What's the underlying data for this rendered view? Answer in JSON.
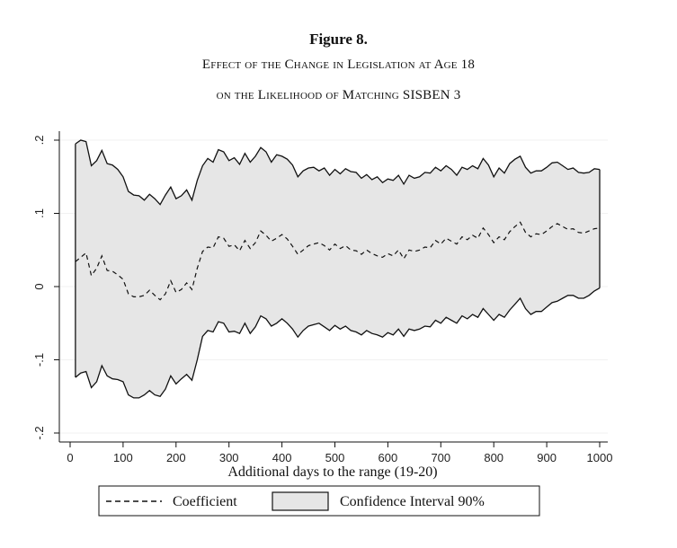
{
  "figure": {
    "number": "Figure 8.",
    "subtitle_line1": "Effect of the Change in Legislation at Age 18",
    "subtitle_line2": "on the Likelihood of Matching SISBEN 3"
  },
  "colors": {
    "band_fill": "#e6e6e6",
    "line": "#111111",
    "grid": "#f1f1f1"
  },
  "chart_data": {
    "type": "area",
    "title": "Effect of the Change in Legislation at Age 18 on the Likelihood of Matching SISBEN 3",
    "xlabel": "Additional days to the range (19-20)",
    "ylabel": "",
    "xlim": [
      0,
      1000
    ],
    "ylim": [
      -0.2,
      0.2
    ],
    "xticks": [
      0,
      100,
      200,
      300,
      400,
      500,
      600,
      700,
      800,
      900,
      1000
    ],
    "yticks": [
      -0.2,
      -0.1,
      0,
      0.1,
      0.2
    ],
    "ytick_labels": [
      "-.2",
      "-.1",
      "0",
      ".1",
      ".2"
    ],
    "grid": true,
    "legend": {
      "position": "bottom",
      "entries": [
        "Coefficient",
        "Confidence Interval 90%"
      ]
    },
    "x": [
      10,
      20,
      30,
      40,
      50,
      60,
      70,
      80,
      90,
      100,
      110,
      120,
      130,
      140,
      150,
      160,
      170,
      180,
      190,
      200,
      210,
      220,
      230,
      240,
      250,
      260,
      270,
      280,
      290,
      300,
      310,
      320,
      330,
      340,
      350,
      360,
      370,
      380,
      390,
      400,
      410,
      420,
      430,
      440,
      450,
      460,
      470,
      480,
      490,
      500,
      510,
      520,
      530,
      540,
      550,
      560,
      570,
      580,
      590,
      600,
      610,
      620,
      630,
      640,
      650,
      660,
      670,
      680,
      690,
      700,
      710,
      720,
      730,
      740,
      750,
      760,
      770,
      780,
      790,
      800,
      810,
      820,
      830,
      840,
      850,
      860,
      870,
      880,
      890,
      900,
      910,
      920,
      930,
      940,
      950,
      960,
      970,
      980,
      990,
      1000
    ],
    "series": [
      {
        "name": "Upper bound (90% CI)",
        "values": [
          0.195,
          0.2,
          0.198,
          0.165,
          0.172,
          0.186,
          0.168,
          0.166,
          0.16,
          0.15,
          0.13,
          0.125,
          0.124,
          0.118,
          0.126,
          0.12,
          0.112,
          0.125,
          0.136,
          0.12,
          0.124,
          0.132,
          0.118,
          0.145,
          0.165,
          0.175,
          0.17,
          0.187,
          0.184,
          0.172,
          0.176,
          0.167,
          0.182,
          0.17,
          0.178,
          0.19,
          0.184,
          0.17,
          0.18,
          0.178,
          0.174,
          0.166,
          0.15,
          0.158,
          0.162,
          0.163,
          0.158,
          0.162,
          0.152,
          0.16,
          0.154,
          0.161,
          0.157,
          0.156,
          0.148,
          0.153,
          0.146,
          0.15,
          0.142,
          0.147,
          0.145,
          0.152,
          0.14,
          0.152,
          0.148,
          0.15,
          0.156,
          0.155,
          0.163,
          0.158,
          0.165,
          0.16,
          0.152,
          0.163,
          0.16,
          0.165,
          0.161,
          0.175,
          0.166,
          0.15,
          0.162,
          0.155,
          0.168,
          0.174,
          0.178,
          0.163,
          0.155,
          0.158,
          0.158,
          0.163,
          0.169,
          0.17,
          0.165,
          0.16,
          0.162,
          0.156,
          0.155,
          0.156,
          0.161,
          0.16
        ]
      },
      {
        "name": "Coefficient",
        "values": [
          0.034,
          0.04,
          0.046,
          0.015,
          0.025,
          0.042,
          0.022,
          0.021,
          0.016,
          0.01,
          -0.01,
          -0.014,
          -0.014,
          -0.012,
          -0.005,
          -0.012,
          -0.018,
          -0.01,
          0.008,
          -0.008,
          -0.004,
          0.005,
          -0.004,
          0.025,
          0.048,
          0.054,
          0.053,
          0.068,
          0.066,
          0.055,
          0.057,
          0.049,
          0.063,
          0.052,
          0.06,
          0.076,
          0.07,
          0.062,
          0.066,
          0.071,
          0.065,
          0.055,
          0.044,
          0.05,
          0.056,
          0.058,
          0.06,
          0.056,
          0.05,
          0.058,
          0.052,
          0.056,
          0.05,
          0.049,
          0.044,
          0.05,
          0.045,
          0.042,
          0.04,
          0.045,
          0.042,
          0.05,
          0.038,
          0.05,
          0.048,
          0.05,
          0.054,
          0.053,
          0.063,
          0.058,
          0.066,
          0.062,
          0.058,
          0.068,
          0.064,
          0.07,
          0.066,
          0.08,
          0.071,
          0.06,
          0.068,
          0.064,
          0.075,
          0.082,
          0.088,
          0.074,
          0.068,
          0.072,
          0.071,
          0.076,
          0.082,
          0.086,
          0.082,
          0.078,
          0.079,
          0.074,
          0.073,
          0.076,
          0.079,
          0.08
        ]
      },
      {
        "name": "Lower bound (90% CI)",
        "values": [
          -0.124,
          -0.118,
          -0.116,
          -0.138,
          -0.13,
          -0.108,
          -0.122,
          -0.126,
          -0.127,
          -0.13,
          -0.148,
          -0.152,
          -0.152,
          -0.148,
          -0.142,
          -0.148,
          -0.15,
          -0.14,
          -0.122,
          -0.133,
          -0.126,
          -0.12,
          -0.128,
          -0.1,
          -0.068,
          -0.06,
          -0.062,
          -0.048,
          -0.05,
          -0.062,
          -0.061,
          -0.064,
          -0.05,
          -0.064,
          -0.055,
          -0.04,
          -0.044,
          -0.054,
          -0.05,
          -0.044,
          -0.05,
          -0.058,
          -0.069,
          -0.06,
          -0.054,
          -0.052,
          -0.05,
          -0.055,
          -0.06,
          -0.053,
          -0.058,
          -0.054,
          -0.06,
          -0.062,
          -0.066,
          -0.06,
          -0.064,
          -0.066,
          -0.069,
          -0.063,
          -0.066,
          -0.058,
          -0.068,
          -0.058,
          -0.06,
          -0.058,
          -0.054,
          -0.055,
          -0.046,
          -0.05,
          -0.042,
          -0.046,
          -0.05,
          -0.04,
          -0.044,
          -0.038,
          -0.042,
          -0.03,
          -0.038,
          -0.046,
          -0.038,
          -0.042,
          -0.032,
          -0.024,
          -0.016,
          -0.03,
          -0.038,
          -0.034,
          -0.034,
          -0.028,
          -0.022,
          -0.02,
          -0.016,
          -0.012,
          -0.012,
          -0.016,
          -0.016,
          -0.012,
          -0.006,
          -0.002
        ]
      }
    ]
  },
  "legend": {
    "coefficient_label": "Coefficient",
    "ci_label": "Confidence Interval 90%"
  }
}
